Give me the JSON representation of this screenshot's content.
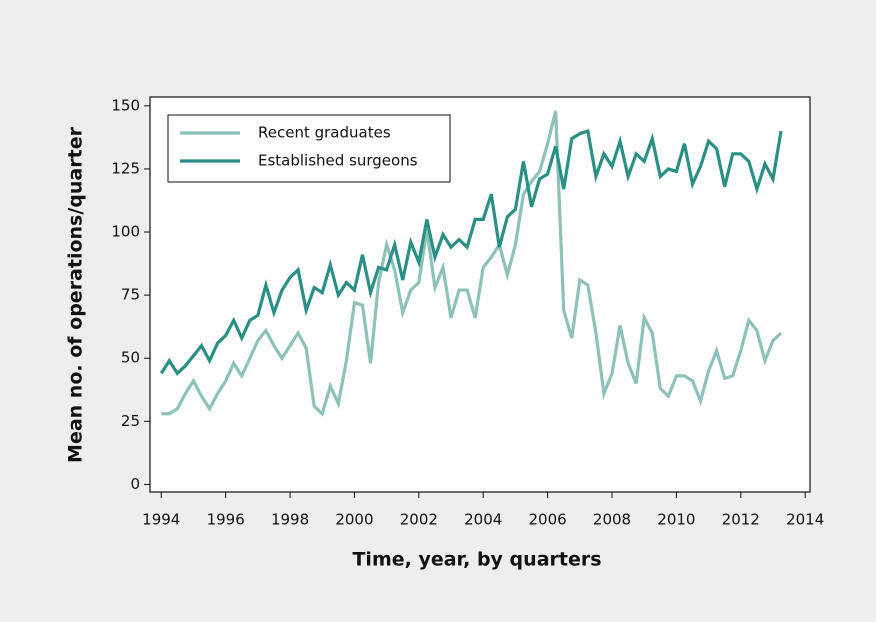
{
  "chart_data": {
    "type": "line",
    "xlabel": "Time, year, by quarters",
    "ylabel": "Mean no. of operations/quarter",
    "x": [
      1994,
      1994.25,
      1994.5,
      1994.75,
      1995,
      1995.25,
      1995.5,
      1995.75,
      1996,
      1996.25,
      1996.5,
      1996.75,
      1997,
      1997.25,
      1997.5,
      1997.75,
      1998,
      1998.25,
      1998.5,
      1998.75,
      1999,
      1999.25,
      1999.5,
      1999.75,
      2000,
      2000.25,
      2000.5,
      2000.75,
      2001,
      2001.25,
      2001.5,
      2001.75,
      2002,
      2002.25,
      2002.5,
      2002.75,
      2003,
      2003.25,
      2003.5,
      2003.75,
      2004,
      2004.25,
      2004.5,
      2004.75,
      2005,
      2005.25,
      2005.5,
      2005.75,
      2006,
      2006.25,
      2006.5,
      2006.75,
      2007,
      2007.25,
      2007.5,
      2007.75,
      2008,
      2008.25,
      2008.5,
      2008.75,
      2009,
      2009.25,
      2009.5,
      2009.75,
      2010,
      2010.25,
      2010.5,
      2010.75,
      2011,
      2011.25,
      2011.5,
      2011.75,
      2012,
      2012.25,
      2012.5,
      2012.75,
      2013,
      2013.25
    ],
    "series": [
      {
        "name": "Recent graduates",
        "color": "#8dc2b9",
        "values": [
          28,
          28,
          30,
          36,
          41,
          35,
          30,
          36,
          41,
          48,
          43,
          50,
          57,
          61,
          55,
          50,
          55,
          60,
          54,
          31,
          28,
          39,
          32,
          49,
          72,
          71,
          48,
          80,
          95,
          85,
          68,
          77,
          80,
          101,
          78,
          86,
          66,
          77,
          77,
          66,
          86,
          90,
          95,
          83,
          95,
          115,
          120,
          124,
          135,
          148,
          69,
          58,
          81,
          79,
          60,
          36,
          44,
          63,
          48,
          40,
          66,
          60,
          38,
          35,
          43,
          43,
          41,
          33,
          45,
          53,
          42,
          43,
          53,
          65,
          61,
          49,
          57,
          60
        ]
      },
      {
        "name": "Established surgeons",
        "color": "#2a8f85",
        "values": [
          44,
          49,
          44,
          47,
          51,
          55,
          49,
          56,
          59,
          65,
          58,
          65,
          67,
          79,
          68,
          77,
          82,
          85,
          69,
          78,
          76,
          87,
          75,
          80,
          77,
          91,
          76,
          86,
          85,
          95,
          81,
          96,
          88,
          105,
          90,
          99,
          94,
          97,
          94,
          105,
          105,
          115,
          94,
          106,
          109,
          128,
          110,
          121,
          123,
          134,
          117,
          137,
          139,
          140,
          122,
          131,
          126,
          136,
          122,
          131,
          128,
          137,
          122,
          125,
          124,
          135,
          119,
          126,
          136,
          133,
          118,
          131,
          131,
          128,
          117,
          127,
          121,
          140
        ]
      }
    ],
    "xlim": [
      1993.65,
      2014.15
    ],
    "xticks": [
      1994,
      1996,
      1998,
      2000,
      2002,
      2004,
      2006,
      2008,
      2010,
      2012,
      2014
    ],
    "ylim": [
      -3,
      153.5
    ],
    "yticks": [
      0,
      25,
      50,
      75,
      100,
      125,
      150
    ],
    "legend": "upper-left"
  }
}
